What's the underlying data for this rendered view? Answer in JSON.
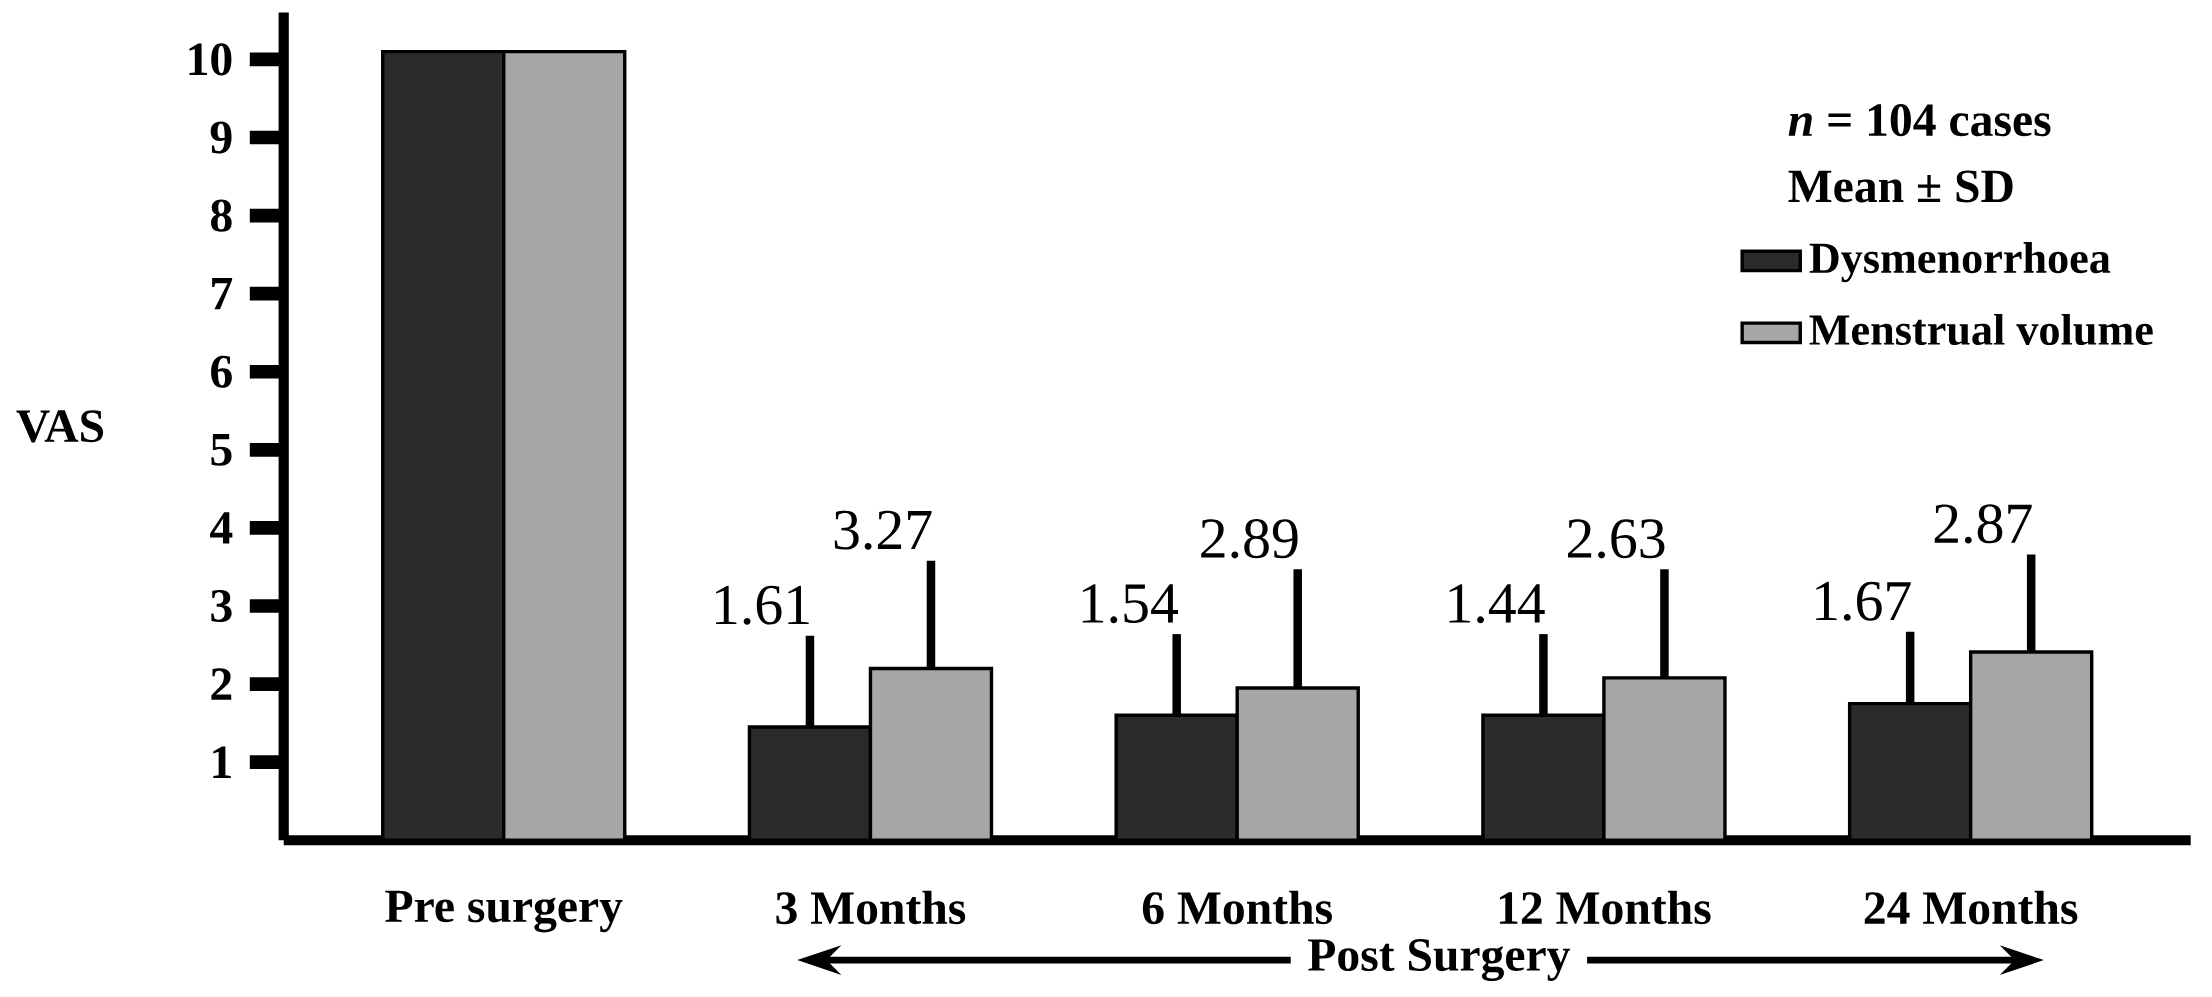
{
  "chart_data": {
    "type": "bar",
    "ylabel": "VAS",
    "categories": [
      "Pre surgery",
      "3 Months",
      "6 Months",
      "12 Months",
      "24 Months"
    ],
    "series": [
      {
        "name": "Dysmenorrhoea",
        "color": "#2b2b2b",
        "values": [
          10.1,
          1.45,
          1.6,
          1.6,
          1.75
        ],
        "errors": [
          null,
          [
            1.45,
            2.62
          ],
          [
            1.6,
            2.64
          ],
          [
            1.6,
            2.64
          ],
          [
            1.75,
            2.67
          ]
        ]
      },
      {
        "name": "Menstrual volume",
        "color": "#a6a6a6",
        "values": [
          10.1,
          2.2,
          1.95,
          2.08,
          2.41
        ],
        "errors": [
          null,
          [
            2.2,
            3.58
          ],
          [
            1.95,
            3.47
          ],
          [
            2.08,
            3.47
          ],
          [
            2.41,
            3.66
          ]
        ]
      }
    ],
    "ylim": [
      0,
      10.6
    ],
    "yticks": [
      1,
      2,
      3,
      4,
      5,
      6,
      7,
      8,
      9,
      10
    ],
    "grid": false,
    "legend": "top right",
    "annotations": [
      "*n* = 104 cases",
      "Mean ± SD",
      "Post Surgery",
      "1.61",
      "3.27",
      "1.54",
      "2.89",
      "1.44",
      "2.63",
      "1.67",
      "2.87"
    ]
  }
}
